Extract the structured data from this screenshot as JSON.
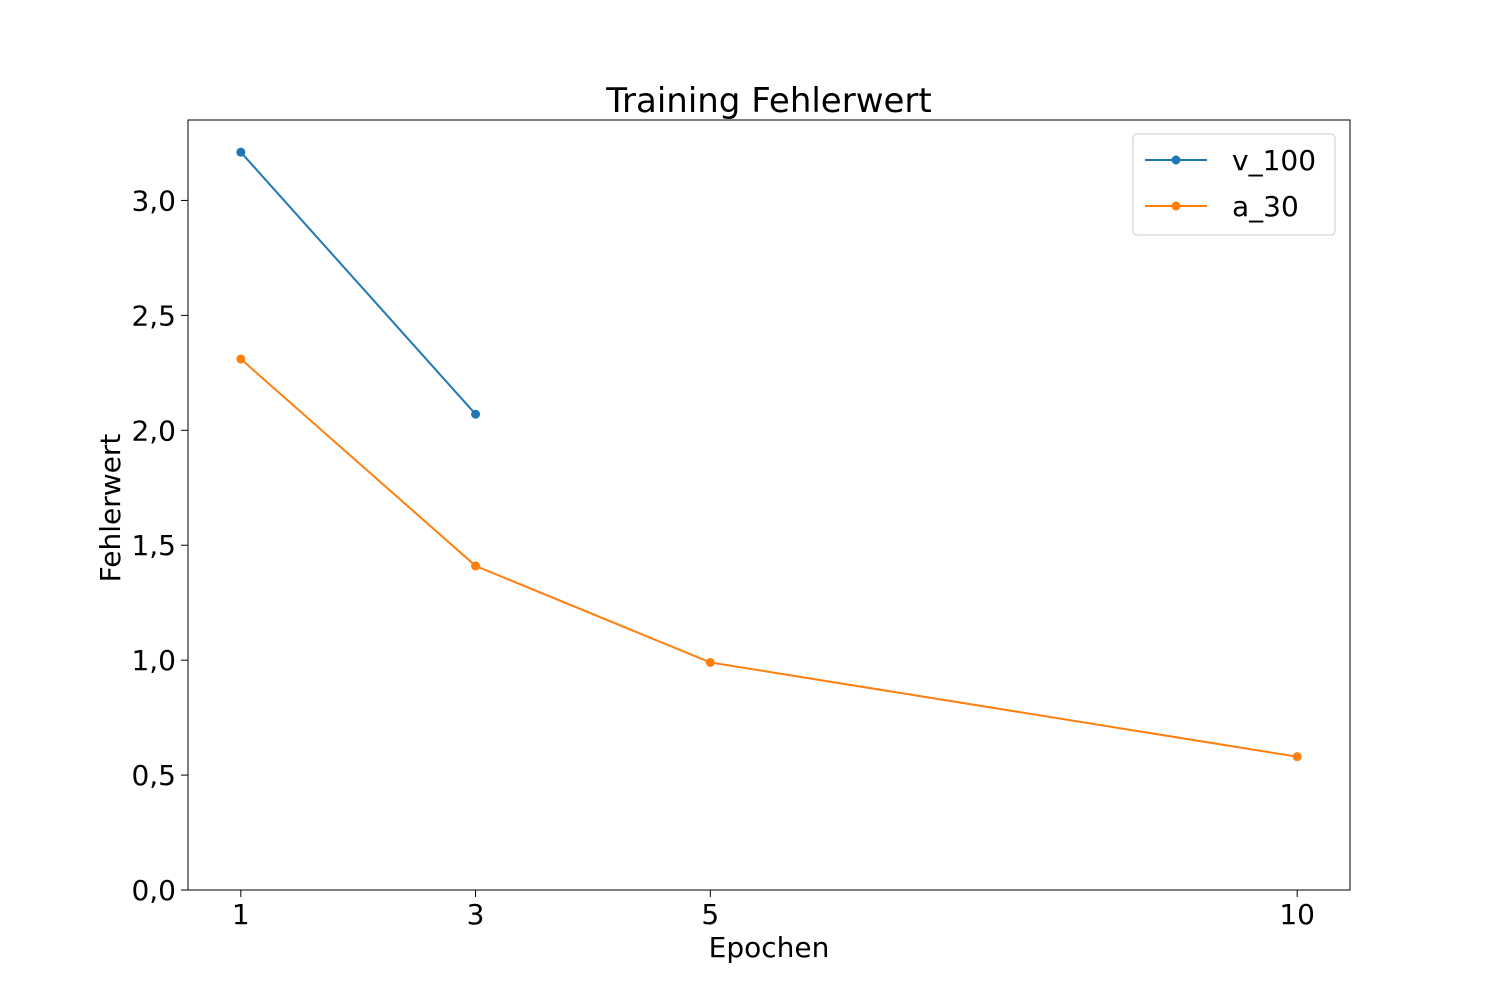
{
  "chart_data": {
    "type": "line",
    "title": "Training Fehlerwert",
    "xlabel": "Epochen",
    "ylabel": "Fehlerwert",
    "x_ticks": [
      1,
      3,
      5,
      10
    ],
    "x_tick_labels": [
      "1",
      "3",
      "5",
      "10"
    ],
    "y_ticks": [
      0.0,
      0.5,
      1.0,
      1.5,
      2.0,
      2.5,
      3.0
    ],
    "y_tick_labels": [
      "0,0",
      "0,5",
      "1,0",
      "1,5",
      "2,0",
      "2,5",
      "3,0"
    ],
    "xlim": [
      0.55,
      10.45
    ],
    "ylim": [
      0,
      3.35
    ],
    "grid": false,
    "legend_position": "top-right",
    "series": [
      {
        "name": "v_100",
        "color": "#1f77b4",
        "x": [
          1,
          3
        ],
        "y": [
          3.21,
          2.07
        ]
      },
      {
        "name": "a_30",
        "color": "#ff7f0e",
        "x": [
          1,
          3,
          5,
          10
        ],
        "y": [
          2.31,
          1.41,
          0.99,
          0.58
        ]
      }
    ]
  }
}
